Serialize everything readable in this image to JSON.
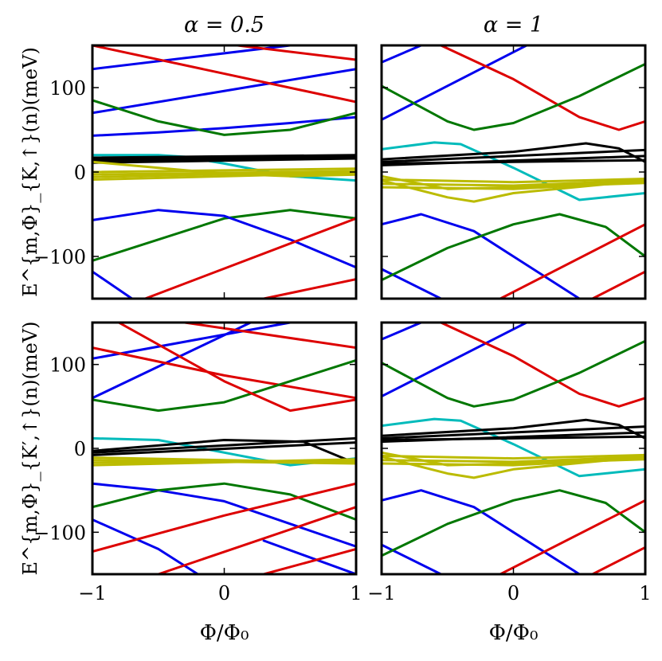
{
  "chart_data": [
    {
      "type": "line",
      "panel": "top-left",
      "title": "α = 0.5",
      "xlabel": "",
      "ylabel": "E^{m,Φ}_{K,↑}(n)(meV)",
      "xlim": [
        -1,
        1
      ],
      "ylim": [
        -150,
        150
      ],
      "xticks": [
        -1,
        0,
        1
      ],
      "yticks": [
        -100,
        0,
        100
      ],
      "xtick_labels_visible": false,
      "ytick_labels_visible": true,
      "series": [
        {
          "color": "#0000ee",
          "x": [
            -1,
            0.5
          ],
          "y": [
            122,
            150
          ]
        },
        {
          "color": "#0000ee",
          "x": [
            -1,
            1
          ],
          "y": [
            70,
            122
          ]
        },
        {
          "color": "#0000ee",
          "x": [
            -1,
            -0.5,
            0,
            0.5,
            1
          ],
          "y": [
            43,
            47,
            52,
            58,
            65
          ]
        },
        {
          "color": "#dd0000",
          "x": [
            -1,
            1
          ],
          "y": [
            150,
            83
          ]
        },
        {
          "color": "#dd0000",
          "x": [
            0.1,
            1
          ],
          "y": [
            150,
            133
          ]
        },
        {
          "color": "#007700",
          "x": [
            -1,
            -0.5,
            0,
            0.5,
            1
          ],
          "y": [
            85,
            60,
            44,
            50,
            70
          ]
        },
        {
          "color": "#00bbbb",
          "x": [
            -1,
            -0.5,
            -0.3,
            0,
            0.5,
            1
          ],
          "y": [
            20,
            20,
            18,
            10,
            -5,
            -10
          ]
        },
        {
          "color": "#000000",
          "x": [
            -1,
            1
          ],
          "y": [
            13,
            18
          ]
        },
        {
          "color": "#000000",
          "x": [
            -1,
            1
          ],
          "y": [
            15,
            19
          ]
        },
        {
          "color": "#000000",
          "x": [
            -1,
            1
          ],
          "y": [
            17,
            20
          ]
        },
        {
          "color": "#000000",
          "x": [
            -1,
            1
          ],
          "y": [
            11,
            16
          ]
        },
        {
          "color": "#bbbb00",
          "x": [
            -1,
            -0.5,
            0,
            0.5,
            1
          ],
          "y": [
            12,
            5,
            -2,
            -5,
            -3
          ]
        },
        {
          "color": "#bbbb00",
          "x": [
            -1,
            1
          ],
          "y": [
            0,
            4
          ]
        },
        {
          "color": "#bbbb00",
          "x": [
            -1,
            1
          ],
          "y": [
            -3,
            1
          ]
        },
        {
          "color": "#bbbb00",
          "x": [
            -1,
            1
          ],
          "y": [
            -6,
            1
          ]
        },
        {
          "color": "#bbbb00",
          "x": [
            -1,
            1
          ],
          "y": [
            -9,
            -1
          ]
        },
        {
          "color": "#007700",
          "x": [
            -1,
            -0.5,
            0,
            0.5,
            1
          ],
          "y": [
            -105,
            -80,
            -55,
            -45,
            -55
          ]
        },
        {
          "color": "#0000ee",
          "x": [
            -1,
            -0.5,
            0,
            0.5,
            1
          ],
          "y": [
            -57,
            -45,
            -52,
            -80,
            -113
          ]
        },
        {
          "color": "#0000ee",
          "x": [
            -1,
            -0.7
          ],
          "y": [
            -118,
            -150
          ]
        },
        {
          "color": "#dd0000",
          "x": [
            -0.6,
            1
          ],
          "y": [
            -150,
            -55
          ]
        },
        {
          "color": "#dd0000",
          "x": [
            0.3,
            1
          ],
          "y": [
            -150,
            -127
          ]
        }
      ]
    },
    {
      "type": "line",
      "panel": "top-right",
      "title": "α = 1",
      "xlabel": "",
      "ylabel": "",
      "xlim": [
        -1,
        1
      ],
      "ylim": [
        -150,
        150
      ],
      "xticks": [
        -1,
        0,
        1
      ],
      "yticks": [
        -100,
        0,
        100
      ],
      "xtick_labels_visible": false,
      "ytick_labels_visible": false,
      "series": [
        {
          "color": "#0000ee",
          "x": [
            -1,
            -0.7
          ],
          "y": [
            130,
            150
          ]
        },
        {
          "color": "#0000ee",
          "x": [
            -1,
            0.1
          ],
          "y": [
            62,
            150
          ]
        },
        {
          "color": "#dd0000",
          "x": [
            -0.55,
            0,
            0.5,
            0.8,
            1
          ],
          "y": [
            150,
            110,
            65,
            50,
            60
          ]
        },
        {
          "color": "#007700",
          "x": [
            -1,
            -0.5,
            -0.3,
            0,
            0.5,
            1
          ],
          "y": [
            102,
            60,
            50,
            58,
            90,
            128
          ]
        },
        {
          "color": "#00bbbb",
          "x": [
            -1,
            -0.6,
            -0.4,
            0,
            0.5,
            1
          ],
          "y": [
            27,
            35,
            33,
            5,
            -33,
            -25
          ]
        },
        {
          "color": "#000000",
          "x": [
            -1,
            0,
            0.55,
            0.8,
            1
          ],
          "y": [
            15,
            24,
            34,
            28,
            12
          ]
        },
        {
          "color": "#000000",
          "x": [
            -1,
            1
          ],
          "y": [
            12,
            26
          ]
        },
        {
          "color": "#000000",
          "x": [
            -1,
            1
          ],
          "y": [
            8,
            19
          ]
        },
        {
          "color": "#000000",
          "x": [
            -1,
            1
          ],
          "y": [
            10,
            14
          ]
        },
        {
          "color": "#bbbb00",
          "x": [
            -1,
            -0.5,
            -0.3,
            0,
            1
          ],
          "y": [
            -10,
            -30,
            -35,
            -25,
            -10
          ]
        },
        {
          "color": "#bbbb00",
          "x": [
            -1,
            -0.5,
            0,
            1
          ],
          "y": [
            -5,
            -20,
            -18,
            -13
          ]
        },
        {
          "color": "#bbbb00",
          "x": [
            -1,
            0,
            1
          ],
          "y": [
            -9,
            -12,
            -8
          ]
        },
        {
          "color": "#bbbb00",
          "x": [
            -1,
            0,
            1
          ],
          "y": [
            -14,
            -16,
            -10
          ]
        },
        {
          "color": "#bbbb00",
          "x": [
            -1,
            0,
            1
          ],
          "y": [
            -18,
            -20,
            -12
          ]
        },
        {
          "color": "#0000ee",
          "x": [
            -1,
            -0.7,
            -0.3,
            0,
            0.5,
            1
          ],
          "y": [
            -62,
            -50,
            -70,
            -100,
            -150,
            -150
          ]
        },
        {
          "color": "#0000ee",
          "x": [
            -1,
            -0.55
          ],
          "y": [
            -115,
            -150
          ]
        },
        {
          "color": "#007700",
          "x": [
            -1,
            -0.5,
            0,
            0.35,
            0.7,
            1
          ],
          "y": [
            -128,
            -90,
            -62,
            -50,
            -65,
            -100
          ]
        },
        {
          "color": "#dd0000",
          "x": [
            -0.1,
            1
          ],
          "y": [
            -150,
            -62
          ]
        },
        {
          "color": "#dd0000",
          "x": [
            0.6,
            1
          ],
          "y": [
            -150,
            -118
          ]
        }
      ]
    },
    {
      "type": "line",
      "panel": "bottom-left",
      "title": "",
      "xlabel": "Φ/Φ₀",
      "ylabel": "E^{m,Φ}_{K′,↑}(n)(meV)",
      "xlim": [
        -1,
        1
      ],
      "ylim": [
        -150,
        150
      ],
      "xticks": [
        -1,
        0,
        1
      ],
      "yticks": [
        -100,
        0,
        100
      ],
      "xtick_labels_visible": true,
      "ytick_labels_visible": true,
      "series": [
        {
          "color": "#0000ee",
          "x": [
            -1,
            0.5
          ],
          "y": [
            107,
            150
          ]
        },
        {
          "color": "#0000ee",
          "x": [
            -1,
            0.2
          ],
          "y": [
            60,
            150
          ]
        },
        {
          "color": "#dd0000",
          "x": [
            -1,
            0,
            1
          ],
          "y": [
            120,
            87,
            60
          ]
        },
        {
          "color": "#dd0000",
          "x": [
            -0.3,
            1
          ],
          "y": [
            150,
            120
          ]
        },
        {
          "color": "#007700",
          "x": [
            -1,
            -0.5,
            0,
            0.5,
            1
          ],
          "y": [
            58,
            45,
            55,
            80,
            105
          ]
        },
        {
          "color": "#dd0000",
          "x": [
            -0.8,
            0,
            0.5,
            1
          ],
          "y": [
            150,
            80,
            45,
            58
          ]
        },
        {
          "color": "#00bbbb",
          "x": [
            -1,
            -0.5,
            0,
            0.5,
            1
          ],
          "y": [
            12,
            10,
            -5,
            -20,
            -12
          ]
        },
        {
          "color": "#000000",
          "x": [
            -1,
            0,
            0.6,
            1
          ],
          "y": [
            -3,
            10,
            8,
            -18
          ]
        },
        {
          "color": "#000000",
          "x": [
            -1,
            1
          ],
          "y": [
            -5,
            12
          ]
        },
        {
          "color": "#000000",
          "x": [
            -1,
            1
          ],
          "y": [
            -8,
            7
          ]
        },
        {
          "color": "#bbbb00",
          "x": [
            -1,
            1
          ],
          "y": [
            -14,
            -18
          ]
        },
        {
          "color": "#bbbb00",
          "x": [
            -1,
            1
          ],
          "y": [
            -17,
            -15
          ]
        },
        {
          "color": "#bbbb00",
          "x": [
            -1,
            1
          ],
          "y": [
            -20,
            -13
          ]
        },
        {
          "color": "#bbbb00",
          "x": [
            -1,
            1
          ],
          "y": [
            -11,
            -17
          ]
        },
        {
          "color": "#0000ee",
          "x": [
            -1,
            -0.5,
            0,
            0.5,
            1
          ],
          "y": [
            -42,
            -50,
            -63,
            -90,
            -117
          ]
        },
        {
          "color": "#007700",
          "x": [
            -1,
            -0.5,
            0,
            0.5,
            1
          ],
          "y": [
            -70,
            -50,
            -42,
            -55,
            -85
          ]
        },
        {
          "color": "#0000ee",
          "x": [
            -1,
            -0.5,
            -0.2
          ],
          "y": [
            -85,
            -120,
            -150
          ]
        },
        {
          "color": "#0000ee",
          "x": [
            0.3,
            1
          ],
          "y": [
            -110,
            -150
          ]
        },
        {
          "color": "#dd0000",
          "x": [
            -1,
            0,
            1
          ],
          "y": [
            -123,
            -80,
            -42
          ]
        },
        {
          "color": "#dd0000",
          "x": [
            -0.5,
            1
          ],
          "y": [
            -150,
            -70
          ]
        },
        {
          "color": "#dd0000",
          "x": [
            0.3,
            1
          ],
          "y": [
            -150,
            -120
          ]
        }
      ]
    },
    {
      "type": "line",
      "panel": "bottom-right",
      "title": "",
      "xlabel": "Φ/Φ₀",
      "ylabel": "",
      "xlim": [
        -1,
        1
      ],
      "ylim": [
        -150,
        150
      ],
      "xticks": [
        -1,
        0,
        1
      ],
      "yticks": [
        -100,
        0,
        100
      ],
      "xtick_labels_visible": true,
      "ytick_labels_visible": false,
      "series": [
        {
          "color": "#0000ee",
          "x": [
            -1,
            -0.7
          ],
          "y": [
            130,
            150
          ]
        },
        {
          "color": "#0000ee",
          "x": [
            -1,
            0.1
          ],
          "y": [
            62,
            150
          ]
        },
        {
          "color": "#dd0000",
          "x": [
            -0.55,
            0,
            0.5,
            0.8,
            1
          ],
          "y": [
            150,
            110,
            65,
            50,
            60
          ]
        },
        {
          "color": "#007700",
          "x": [
            -1,
            -0.5,
            -0.3,
            0,
            0.5,
            1
          ],
          "y": [
            102,
            60,
            50,
            58,
            90,
            128
          ]
        },
        {
          "color": "#00bbbb",
          "x": [
            -1,
            -0.6,
            -0.4,
            0,
            0.5,
            1
          ],
          "y": [
            27,
            35,
            33,
            5,
            -33,
            -25
          ]
        },
        {
          "color": "#000000",
          "x": [
            -1,
            0,
            0.55,
            0.8,
            1
          ],
          "y": [
            15,
            24,
            34,
            28,
            12
          ]
        },
        {
          "color": "#000000",
          "x": [
            -1,
            1
          ],
          "y": [
            12,
            26
          ]
        },
        {
          "color": "#000000",
          "x": [
            -1,
            1
          ],
          "y": [
            8,
            19
          ]
        },
        {
          "color": "#000000",
          "x": [
            -1,
            1
          ],
          "y": [
            10,
            14
          ]
        },
        {
          "color": "#bbbb00",
          "x": [
            -1,
            -0.5,
            -0.3,
            0,
            1
          ],
          "y": [
            -10,
            -30,
            -35,
            -25,
            -10
          ]
        },
        {
          "color": "#bbbb00",
          "x": [
            -1,
            -0.5,
            0,
            1
          ],
          "y": [
            -5,
            -20,
            -18,
            -13
          ]
        },
        {
          "color": "#bbbb00",
          "x": [
            -1,
            0,
            1
          ],
          "y": [
            -9,
            -12,
            -8
          ]
        },
        {
          "color": "#bbbb00",
          "x": [
            -1,
            0,
            1
          ],
          "y": [
            -14,
            -16,
            -10
          ]
        },
        {
          "color": "#bbbb00",
          "x": [
            -1,
            0,
            1
          ],
          "y": [
            -18,
            -20,
            -12
          ]
        },
        {
          "color": "#0000ee",
          "x": [
            -1,
            -0.7,
            -0.3,
            0,
            0.5,
            1
          ],
          "y": [
            -62,
            -50,
            -70,
            -100,
            -150,
            -150
          ]
        },
        {
          "color": "#0000ee",
          "x": [
            -1,
            -0.55
          ],
          "y": [
            -115,
            -150
          ]
        },
        {
          "color": "#007700",
          "x": [
            -1,
            -0.5,
            0,
            0.35,
            0.7,
            1
          ],
          "y": [
            -128,
            -90,
            -62,
            -50,
            -65,
            -100
          ]
        },
        {
          "color": "#dd0000",
          "x": [
            -0.1,
            1
          ],
          "y": [
            -150,
            -62
          ]
        },
        {
          "color": "#dd0000",
          "x": [
            0.6,
            1
          ],
          "y": [
            -150,
            -118
          ]
        }
      ]
    }
  ]
}
